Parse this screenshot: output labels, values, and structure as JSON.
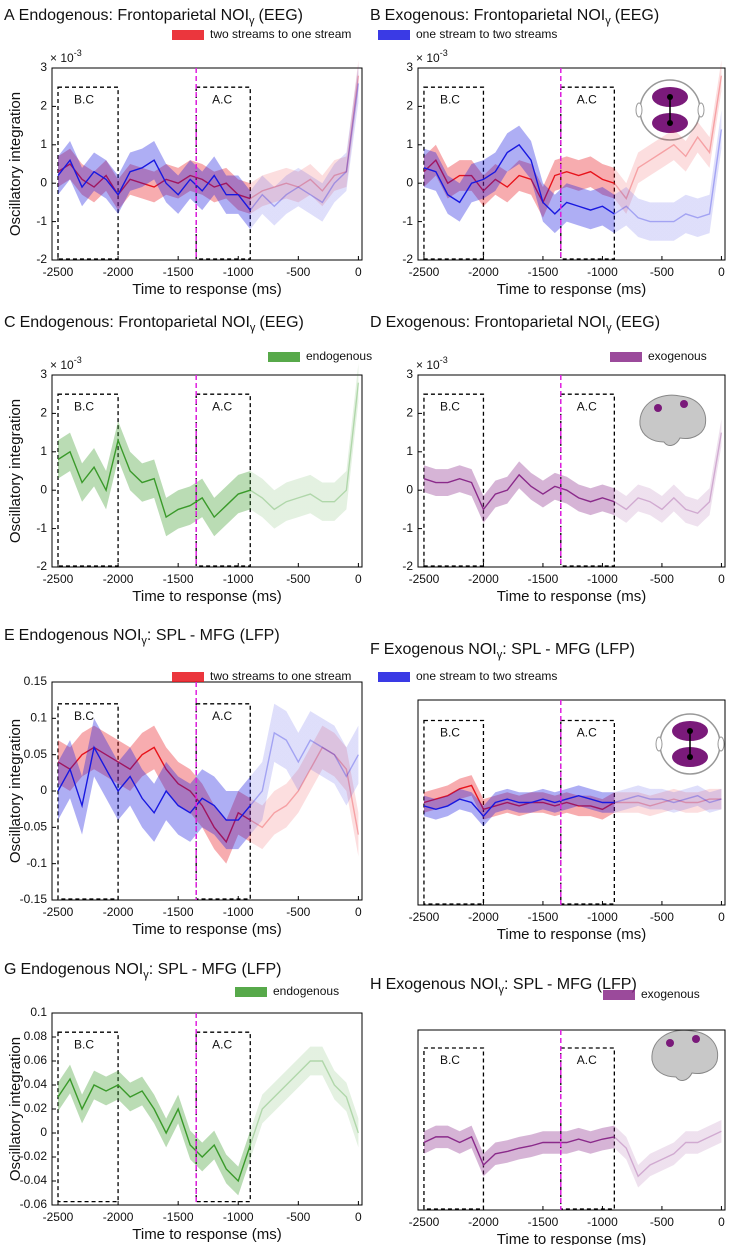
{
  "chart_data": [
    {
      "type": "line",
      "panel": "A",
      "title": "Endogenous: Frontoparietal NOI",
      "title_sub": "γ",
      "title_end": "(EEG)",
      "xlabel": "Time to response (ms)",
      "ylabel": "Oscillatory integration",
      "y_scale": "× 10",
      "y_scale_exp": "-3",
      "x": [
        -2500,
        -2400,
        -2300,
        -2200,
        -2100,
        -2000,
        -1900,
        -1800,
        -1700,
        -1600,
        -1500,
        -1400,
        -1300,
        -1200,
        -1100,
        -1000,
        -900,
        -800,
        -700,
        -600,
        -500,
        -400,
        -300,
        -200,
        -100,
        0
      ],
      "xlim": [
        -2550,
        30
      ],
      "xticks": [
        -2500,
        -2000,
        -1500,
        -1000,
        -500,
        0
      ],
      "ylim": [
        -2,
        3
      ],
      "yticks": [
        -2,
        -1,
        0,
        1,
        2,
        3
      ],
      "vline": -1350,
      "legend": "top",
      "annotations": [
        {
          "label": "B.C",
          "x": [
            -2500,
            -2000
          ],
          "y": [
            -2,
            2.5
          ]
        },
        {
          "label": "A.C",
          "x": [
            -1350,
            -900
          ],
          "y": [
            -2,
            2.5
          ]
        }
      ],
      "series": [
        {
          "name": "two streams to one stream",
          "color": "#e8131b",
          "error": 0.4,
          "values": [
            0.3,
            0.5,
            0.1,
            -0.1,
            0.2,
            -0.3,
            0.1,
            0.0,
            -0.1,
            0.1,
            0.0,
            0.2,
            0.1,
            -0.1,
            0.0,
            -0.3,
            -0.4,
            -0.2,
            -0.1,
            0.0,
            -0.1,
            0.1,
            -0.2,
            0.2,
            0.3,
            2.8
          ]
        },
        {
          "name": "one stream to two streams",
          "color": "#1818e0",
          "error": 0.5,
          "values": [
            0.2,
            0.6,
            -0.1,
            0.3,
            0.1,
            -0.3,
            0.3,
            0.4,
            0.6,
            0.0,
            -0.3,
            0.1,
            -0.2,
            0.2,
            -0.3,
            -0.3,
            -0.7,
            -0.3,
            -0.6,
            -0.3,
            -0.1,
            -0.3,
            -0.5,
            0.0,
            0.3,
            2.6
          ]
        }
      ]
    },
    {
      "type": "line",
      "panel": "B",
      "title": "Exogenous: Frontoparietal NOI",
      "title_sub": "γ",
      "title_end": "(EEG)",
      "xlabel": "Time to response (ms)",
      "y_scale": "× 10",
      "y_scale_exp": "-3",
      "x": [
        -2500,
        -2400,
        -2300,
        -2200,
        -2100,
        -2000,
        -1900,
        -1800,
        -1700,
        -1600,
        -1500,
        -1400,
        -1300,
        -1200,
        -1100,
        -1000,
        -900,
        -800,
        -700,
        -600,
        -500,
        -400,
        -300,
        -200,
        -100,
        0
      ],
      "xlim": [
        -2550,
        30
      ],
      "xticks": [
        -2500,
        -2000,
        -1500,
        -1000,
        -500,
        0
      ],
      "ylim": [
        -2,
        3
      ],
      "yticks": [
        -2,
        -1,
        0,
        1,
        2,
        3
      ],
      "vline": -1350,
      "annotations": [
        {
          "label": "B.C",
          "x": [
            -2500,
            -2000
          ],
          "y": [
            -2,
            2.5
          ]
        },
        {
          "label": "A.C",
          "x": [
            -1350,
            -900
          ],
          "y": [
            -2,
            2.5
          ]
        }
      ],
      "series": [
        {
          "color": "#e8131b",
          "error": 0.4,
          "values": [
            0.3,
            0.6,
            0.0,
            0.2,
            0.2,
            -0.2,
            0.1,
            -0.1,
            0.2,
            0.1,
            -0.5,
            0.2,
            0.3,
            0.2,
            0.3,
            0.1,
            0.0,
            -0.4,
            0.4,
            0.6,
            0.8,
            1.0,
            0.7,
            1.2,
            0.8,
            2.8
          ]
        },
        {
          "color": "#1818e0",
          "error": 0.5,
          "values": [
            0.4,
            0.3,
            -0.3,
            -0.5,
            0.0,
            0.1,
            0.3,
            0.8,
            1.0,
            0.6,
            -0.5,
            -0.8,
            -0.5,
            -0.6,
            -0.7,
            -0.6,
            -0.8,
            -0.6,
            -0.9,
            -1.0,
            -1.0,
            -1.0,
            -0.8,
            -0.9,
            -0.8,
            1.4
          ]
        }
      ]
    },
    {
      "type": "line",
      "panel": "C",
      "title": "Endogenous: Frontoparietal NOI",
      "title_sub": "γ",
      "title_end": "(EEG)",
      "xlabel": "Time to response (ms)",
      "ylabel": "Oscillatory integration",
      "y_scale": "× 10",
      "y_scale_exp": "-3",
      "x": [
        -2500,
        -2400,
        -2300,
        -2200,
        -2100,
        -2000,
        -1900,
        -1800,
        -1700,
        -1600,
        -1500,
        -1400,
        -1300,
        -1200,
        -1100,
        -1000,
        -900,
        -800,
        -700,
        -600,
        -500,
        -400,
        -300,
        -200,
        -100,
        0
      ],
      "xlim": [
        -2550,
        30
      ],
      "xticks": [
        -2500,
        -2000,
        -1500,
        -1000,
        -500,
        0
      ],
      "ylim": [
        -2,
        3
      ],
      "yticks": [
        -2,
        -1,
        0,
        1,
        2,
        3
      ],
      "vline": -1350,
      "legend": "top-right",
      "annotations": [
        {
          "label": "B.C",
          "x": [
            -2500,
            -2000
          ],
          "y": [
            -2,
            2.5
          ]
        },
        {
          "label": "A.C",
          "x": [
            -1350,
            -900
          ],
          "y": [
            -2,
            2.5
          ]
        }
      ],
      "series": [
        {
          "name": "endogenous",
          "color": "#3a9a2a",
          "error": 0.5,
          "values": [
            0.8,
            1.0,
            0.2,
            0.6,
            0.0,
            1.3,
            0.5,
            0.2,
            0.3,
            -0.7,
            -0.5,
            -0.4,
            -0.2,
            -0.7,
            -0.4,
            -0.1,
            0.0,
            -0.2,
            -0.5,
            -0.3,
            -0.2,
            -0.1,
            -0.3,
            -0.3,
            0.0,
            2.8
          ]
        }
      ]
    },
    {
      "type": "line",
      "panel": "D",
      "title": "Exogenous: Frontoparietal NOI",
      "title_sub": "γ",
      "title_end": "(EEG)",
      "xlabel": "Time to response (ms)",
      "y_scale": "× 10",
      "y_scale_exp": "-3",
      "x": [
        -2500,
        -2400,
        -2300,
        -2200,
        -2100,
        -2000,
        -1900,
        -1800,
        -1700,
        -1600,
        -1500,
        -1400,
        -1300,
        -1200,
        -1100,
        -1000,
        -900,
        -800,
        -700,
        -600,
        -500,
        -400,
        -300,
        -200,
        -100,
        0
      ],
      "xlim": [
        -2550,
        30
      ],
      "xticks": [
        -2500,
        -2000,
        -1500,
        -1000,
        -500,
        0
      ],
      "ylim": [
        -2,
        3
      ],
      "yticks": [
        -2,
        -1,
        0,
        1,
        2,
        3
      ],
      "vline": -1350,
      "legend": "top-right",
      "annotations": [
        {
          "label": "B.C",
          "x": [
            -2500,
            -2000
          ],
          "y": [
            -2,
            2.5
          ]
        },
        {
          "label": "A.C",
          "x": [
            -1350,
            -900
          ],
          "y": [
            -2,
            2.5
          ]
        }
      ],
      "series": [
        {
          "name": "exogenous",
          "color": "#8a2a8a",
          "error": 0.35,
          "values": [
            0.3,
            0.2,
            0.2,
            0.3,
            0.2,
            -0.5,
            -0.1,
            0.0,
            0.4,
            0.1,
            -0.1,
            0.1,
            0.0,
            -0.2,
            -0.3,
            -0.2,
            -0.3,
            -0.5,
            -0.2,
            -0.3,
            -0.5,
            -0.2,
            -0.5,
            -0.6,
            -0.3,
            1.5
          ]
        }
      ]
    },
    {
      "type": "line",
      "panel": "E",
      "title": "Endogenous NOI",
      "title_sub": "γ",
      "title_end": ": SPL - MFG (LFP)",
      "xlabel": "Time to response (ms)",
      "ylabel": "Oscillatory integration",
      "x": [
        -2500,
        -2400,
        -2300,
        -2200,
        -2100,
        -2000,
        -1900,
        -1800,
        -1700,
        -1600,
        -1500,
        -1400,
        -1300,
        -1200,
        -1100,
        -1000,
        -900,
        -800,
        -700,
        -600,
        -500,
        -400,
        -300,
        -200,
        -100,
        0
      ],
      "xlim": [
        -2550,
        30
      ],
      "xticks": [
        -2500,
        -2000,
        -1500,
        -1000,
        -500,
        0
      ],
      "ylim": [
        -0.15,
        0.15
      ],
      "yticks": [
        -0.15,
        -0.1,
        -0.05,
        0,
        0.05,
        0.1,
        0.15
      ],
      "vline": -1350,
      "legend": "top",
      "annotations": [
        {
          "label": "B.C",
          "x": [
            -2500,
            -2000
          ],
          "y": [
            -0.15,
            0.12
          ]
        },
        {
          "label": "A.C",
          "x": [
            -1350,
            -900
          ],
          "y": [
            -0.15,
            0.12
          ]
        }
      ],
      "series": [
        {
          "name": "two streams to one stream",
          "color": "#e8131b",
          "error": 0.03,
          "values": [
            0.04,
            0.03,
            0.05,
            0.06,
            0.05,
            0.04,
            0.03,
            0.05,
            0.06,
            0.03,
            0.01,
            0.0,
            -0.02,
            -0.05,
            -0.07,
            -0.03,
            -0.04,
            -0.05,
            -0.03,
            -0.02,
            0.0,
            0.03,
            0.06,
            0.05,
            0.03,
            -0.06
          ]
        },
        {
          "name": "one stream to two streams",
          "color": "#1818e0",
          "error": 0.04,
          "values": [
            0.0,
            0.03,
            -0.02,
            0.06,
            0.03,
            0.0,
            0.02,
            -0.01,
            -0.03,
            0.0,
            -0.02,
            -0.03,
            -0.01,
            -0.02,
            -0.04,
            -0.04,
            -0.02,
            0.0,
            0.08,
            0.07,
            0.04,
            0.07,
            0.06,
            0.05,
            0.02,
            0.05
          ]
        }
      ]
    },
    {
      "type": "line",
      "panel": "F",
      "title": "Exogenous NOI",
      "title_sub": "γ",
      "title_end": ": SPL - MFG (LFP)",
      "xlabel": "Time to response (ms)",
      "x": [
        -2500,
        -2400,
        -2300,
        -2200,
        -2100,
        -2000,
        -1900,
        -1800,
        -1700,
        -1600,
        -1500,
        -1400,
        -1300,
        -1200,
        -1100,
        -1000,
        -900,
        -800,
        -700,
        -600,
        -500,
        -400,
        -300,
        -200,
        -100,
        0
      ],
      "xlim": [
        -2550,
        30
      ],
      "xticks": [
        -2500,
        -2000,
        -1500,
        -1000,
        -500,
        0
      ],
      "ylim": [
        -0.15,
        0.15
      ],
      "vline": -1350,
      "annotations": [
        {
          "label": "B.C",
          "x": [
            -2500,
            -2000
          ],
          "y": [
            -0.15,
            0.12
          ]
        },
        {
          "label": "A.C",
          "x": [
            -1350,
            -900
          ],
          "y": [
            -0.15,
            0.12
          ]
        }
      ],
      "series": [
        {
          "color": "#e8131b",
          "error": 0.015,
          "values": [
            0,
            0.005,
            0.01,
            0.02,
            0.025,
            -0.01,
            -0.005,
            0,
            -0.005,
            0,
            0,
            -0.005,
            0,
            -0.005,
            -0.005,
            -0.01,
            0,
            0,
            0,
            -0.005,
            0,
            0.005,
            0,
            0,
            0.005,
            0.005
          ]
        },
        {
          "color": "#1818e0",
          "error": 0.015,
          "values": [
            -0.005,
            -0.01,
            -0.005,
            0.005,
            0,
            -0.02,
            0,
            0.005,
            0,
            0,
            0.005,
            0,
            0.005,
            0.01,
            0.005,
            0,
            0,
            0.005,
            0.01,
            0.005,
            0.005,
            0,
            0.005,
            0.01,
            0,
            0.005
          ]
        }
      ]
    },
    {
      "type": "line",
      "panel": "G",
      "title": "Endogenous NOI",
      "title_sub": "γ",
      "title_end": ": SPL - MFG (LFP)",
      "xlabel": "Time to response (ms)",
      "ylabel": "Oscillatory integration",
      "x": [
        -2500,
        -2400,
        -2300,
        -2200,
        -2100,
        -2000,
        -1900,
        -1800,
        -1700,
        -1600,
        -1500,
        -1400,
        -1300,
        -1200,
        -1100,
        -1000,
        -900,
        -800,
        -700,
        -600,
        -500,
        -400,
        -300,
        -200,
        -100,
        0
      ],
      "xlim": [
        -2550,
        30
      ],
      "xticks": [
        -2500,
        -2000,
        -1500,
        -1000,
        -500,
        0
      ],
      "ylim": [
        -0.06,
        0.1
      ],
      "yticks": [
        -0.06,
        -0.04,
        -0.02,
        0,
        0.02,
        0.04,
        0.06,
        0.08,
        0.1
      ],
      "vline": -1350,
      "legend": "top-right",
      "annotations": [
        {
          "label": "B.C",
          "x": [
            -2500,
            -2000
          ],
          "y": [
            -0.058,
            0.084
          ]
        },
        {
          "label": "A.C",
          "x": [
            -1350,
            -900
          ],
          "y": [
            -0.058,
            0.084
          ]
        }
      ],
      "series": [
        {
          "name": "endogenous",
          "color": "#3a9a2a",
          "error": 0.012,
          "values": [
            0.03,
            0.045,
            0.02,
            0.04,
            0.035,
            0.04,
            0.03,
            0.035,
            0.02,
            0.0,
            0.02,
            -0.01,
            -0.02,
            -0.01,
            -0.03,
            -0.04,
            -0.01,
            0.02,
            0.03,
            0.04,
            0.05,
            0.06,
            0.06,
            0.04,
            0.03,
            0.0
          ]
        }
      ]
    },
    {
      "type": "line",
      "panel": "H",
      "title": "Exogenous NOI",
      "title_sub": "γ",
      "title_end": ": SPL - MFG (LFP)",
      "xlabel": "Time to response (ms)",
      "x": [
        -2500,
        -2400,
        -2300,
        -2200,
        -2100,
        -2000,
        -1900,
        -1800,
        -1700,
        -1600,
        -1500,
        -1400,
        -1300,
        -1200,
        -1100,
        -1000,
        -900,
        -800,
        -700,
        -600,
        -500,
        -400,
        -300,
        -200,
        -100,
        0
      ],
      "xlim": [
        -2550,
        30
      ],
      "xticks": [
        -2500,
        -2000,
        -1500,
        -1000,
        -500,
        0
      ],
      "ylim": [
        -0.06,
        0.1
      ],
      "vline": -1350,
      "legend": "top-right",
      "annotations": [
        {
          "label": "B.C",
          "x": [
            -2500,
            -2000
          ],
          "y": [
            -0.06,
            0.084
          ]
        },
        {
          "label": "A.C",
          "x": [
            -1350,
            -900
          ],
          "y": [
            -0.06,
            0.084
          ]
        }
      ],
      "series": [
        {
          "name": "exogenous",
          "color": "#8a2a8a",
          "error": 0.01,
          "values": [
            0.0,
            0.005,
            0.005,
            0.0,
            0.005,
            -0.02,
            -0.01,
            -0.008,
            -0.005,
            -0.003,
            0.0,
            0.0,
            0.0,
            0.003,
            0.0,
            0.003,
            0.005,
            -0.005,
            -0.03,
            -0.02,
            -0.015,
            -0.01,
            0.0,
            0.0,
            0.005,
            0.01
          ]
        }
      ]
    }
  ]
}
